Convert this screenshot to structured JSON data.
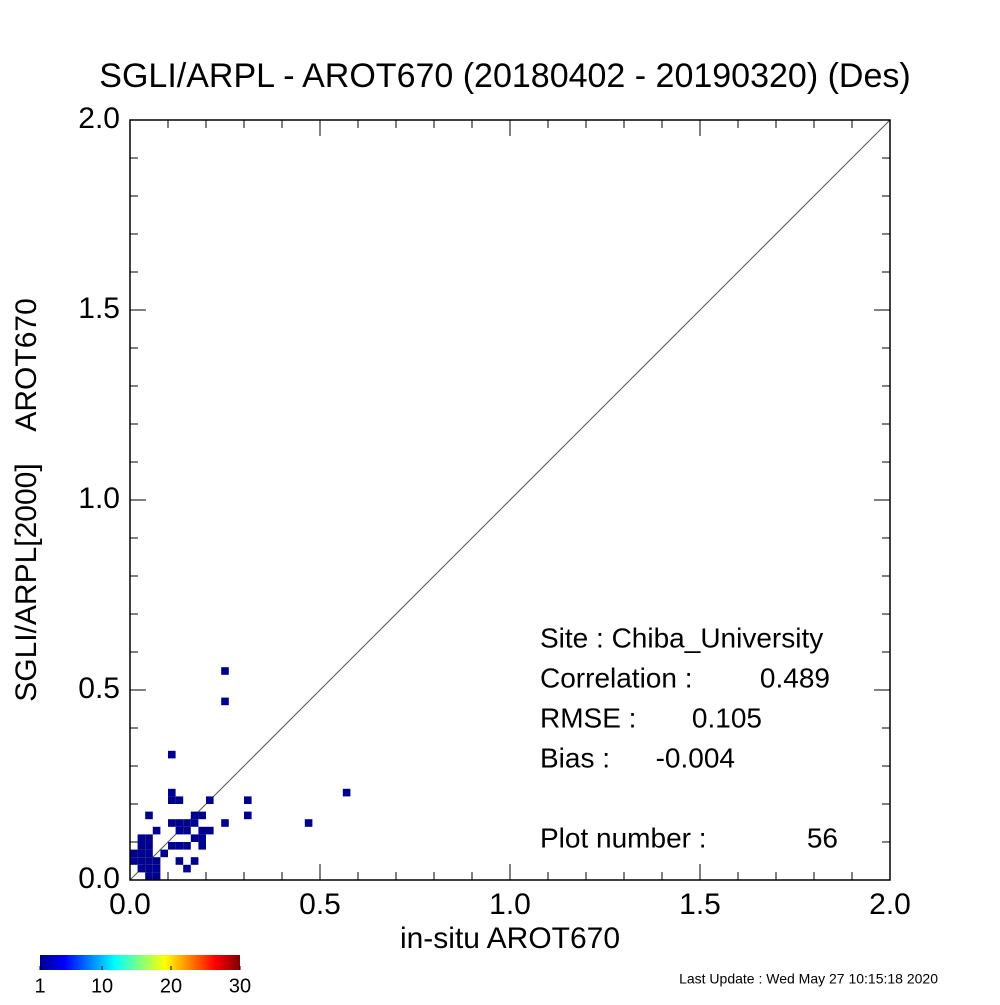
{
  "chart_data": {
    "type": "scatter",
    "title": "SGLI/ARPL - AROT670 (20180402 - 20190320) (Des)",
    "x_label": "in-situ AROT670",
    "y_label": "SGLI/ARPL[2000]    AROT670",
    "xlim": [
      0,
      2
    ],
    "ylim": [
      0,
      2
    ],
    "xticks": [
      {
        "value": 0,
        "label": "0.0"
      },
      0.5,
      {
        "value": 1,
        "label": "1.0"
      },
      1.5,
      {
        "value": 2,
        "label": "2.0"
      }
    ],
    "yticks": [
      {
        "value": 0,
        "label": "0.0"
      },
      0.5,
      {
        "value": 1,
        "label": "1.0"
      },
      1.5,
      {
        "value": 2,
        "label": "2.0"
      }
    ],
    "minor_ticks": [
      0.1,
      0.2,
      0.3,
      0.4,
      0.6,
      0.7,
      0.8,
      0.9,
      1.1,
      1.2,
      1.3,
      1.4,
      1.6,
      1.7,
      1.8,
      1.9
    ],
    "diagonal": true,
    "bin_width": 0.02,
    "series": [
      {
        "color": "#00008f",
        "x": [
          0.01,
          0.01,
          0.03,
          0.03,
          0.03,
          0.03,
          0.05,
          0.05,
          0.05,
          0.05,
          0.05,
          0.05,
          0.07,
          0.07,
          0.07,
          0.03,
          0.09,
          0.11,
          0.11,
          0.13,
          0.13,
          0.13,
          0.15,
          0.15,
          0.15,
          0.17,
          0.17,
          0.17,
          0.19,
          0.19,
          0.19,
          0.21,
          0.13,
          0.11,
          0.11,
          0.05,
          0.11,
          0.25,
          0.25,
          0.21,
          0.31,
          0.31,
          0.25,
          0.47,
          0.57,
          0.15,
          0.17,
          0.19,
          0.13,
          0.07
        ],
        "values": [
          0.05,
          0.07,
          0.03,
          0.05,
          0.07,
          0.09,
          0.01,
          0.03,
          0.05,
          0.07,
          0.09,
          0.11,
          0.01,
          0.03,
          0.05,
          0.11,
          0.07,
          0.09,
          0.15,
          0.09,
          0.05,
          0.15,
          0.03,
          0.09,
          0.13,
          0.05,
          0.11,
          0.15,
          0.09,
          0.13,
          0.17,
          0.13,
          0.21,
          0.23,
          0.21,
          0.17,
          0.33,
          0.55,
          0.47,
          0.21,
          0.21,
          0.17,
          0.15,
          0.15,
          0.23,
          0.15,
          0.17,
          0.11,
          0.13,
          0.13
        ]
      }
    ],
    "stats": {
      "site": "Site : Chiba_University",
      "rows": [
        {
          "label": "Correlation :",
          "value": 0.489
        },
        {
          "label": "RMSE :",
          "value": 0.105
        },
        {
          "label": "Bias :",
          "value": -0.004
        }
      ],
      "count_label": "Plot number :",
      "count": 56
    },
    "colorbar": {
      "range": [
        1,
        30
      ],
      "ticks": [
        1,
        10,
        20,
        30
      ]
    },
    "footer": "Last Update : Wed May 27 10:15:18 2020"
  }
}
